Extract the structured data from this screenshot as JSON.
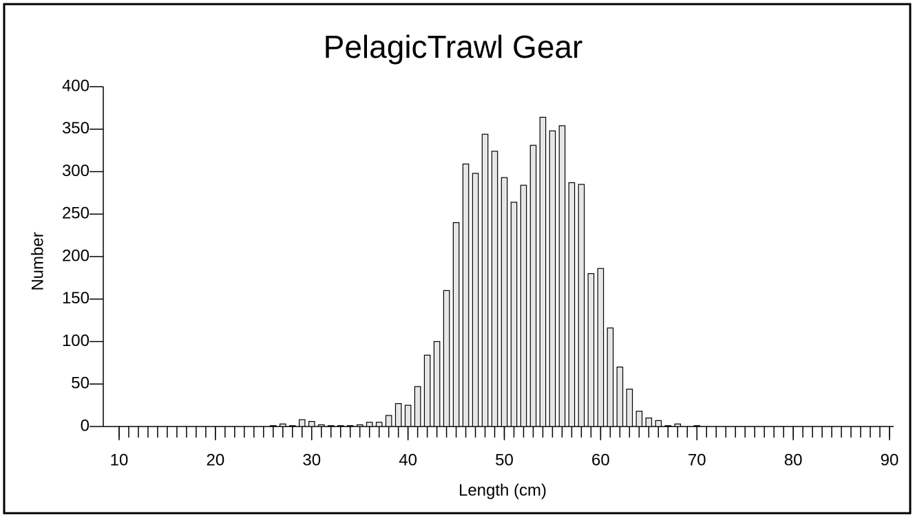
{
  "chart_data": {
    "type": "bar",
    "title": "PelagicTrawl Gear",
    "xlabel": "Length (cm)",
    "ylabel": "Number",
    "x": [
      10,
      11,
      12,
      13,
      14,
      15,
      16,
      17,
      18,
      19,
      20,
      21,
      22,
      23,
      24,
      25,
      26,
      27,
      28,
      29,
      30,
      31,
      32,
      33,
      34,
      35,
      36,
      37,
      38,
      39,
      40,
      41,
      42,
      43,
      44,
      45,
      46,
      47,
      48,
      49,
      50,
      51,
      52,
      53,
      54,
      55,
      56,
      57,
      58,
      59,
      60,
      61,
      62,
      63,
      64,
      65,
      66,
      67,
      68,
      69,
      70,
      71,
      72,
      73,
      74,
      75,
      76,
      77,
      78,
      79,
      80,
      81,
      82,
      83,
      84,
      85,
      86,
      87,
      88,
      89,
      90
    ],
    "values": [
      0,
      0,
      0,
      0,
      0,
      0,
      0,
      0,
      0,
      0,
      0,
      0,
      0,
      0,
      0,
      0,
      1,
      3,
      1,
      8,
      6,
      2,
      1,
      1,
      1,
      2,
      5,
      5,
      13,
      27,
      25,
      47,
      84,
      100,
      160,
      240,
      309,
      298,
      344,
      324,
      293,
      264,
      284,
      331,
      364,
      348,
      354,
      287,
      285,
      180,
      186,
      116,
      70,
      44,
      18,
      10,
      7,
      1,
      3,
      0,
      1,
      0,
      0,
      0,
      0,
      0,
      0,
      0,
      0,
      0,
      0,
      0,
      0,
      0,
      0,
      0,
      0,
      0,
      0,
      0,
      0
    ],
    "color": "#e6e6e6",
    "xlim": [
      10,
      90
    ],
    "xticks": [
      10,
      20,
      30,
      40,
      50,
      60,
      70,
      80,
      90
    ],
    "ylim": [
      0,
      400
    ],
    "yticks": [
      0,
      50,
      100,
      150,
      200,
      250,
      300,
      350,
      400
    ],
    "grid": false
  }
}
